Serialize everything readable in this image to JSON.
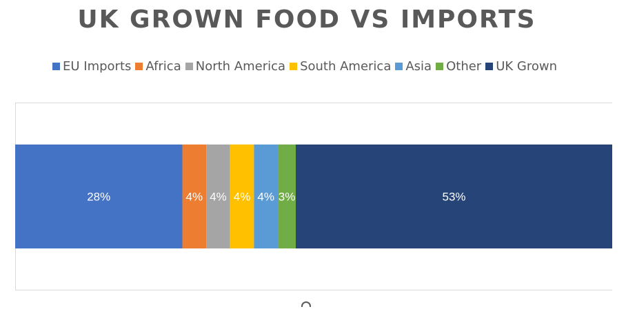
{
  "chart_data": {
    "type": "bar",
    "orientation": "horizontal-stacked-100",
    "title": "UK GROWN FOOD VS IMPORTS",
    "categories": [
      ""
    ],
    "series": [
      {
        "name": "EU Imports",
        "values": [
          28
        ],
        "label": "28%",
        "color": "#4472C4"
      },
      {
        "name": "Africa",
        "values": [
          4
        ],
        "label": "4%",
        "color": "#ED7D31"
      },
      {
        "name": "North America",
        "values": [
          4
        ],
        "label": "4%",
        "color": "#A5A5A5"
      },
      {
        "name": "South America",
        "values": [
          4
        ],
        "label": "4%",
        "color": "#FFC000"
      },
      {
        "name": "Asia",
        "values": [
          4
        ],
        "label": "4%",
        "color": "#5B9BD5"
      },
      {
        "name": "Other",
        "values": [
          3
        ],
        "label": "3%",
        "color": "#70AD47"
      },
      {
        "name": "UK Grown",
        "values": [
          53
        ],
        "label": "53%",
        "color": "#264478"
      }
    ],
    "legend_position": "top",
    "grid": false
  }
}
